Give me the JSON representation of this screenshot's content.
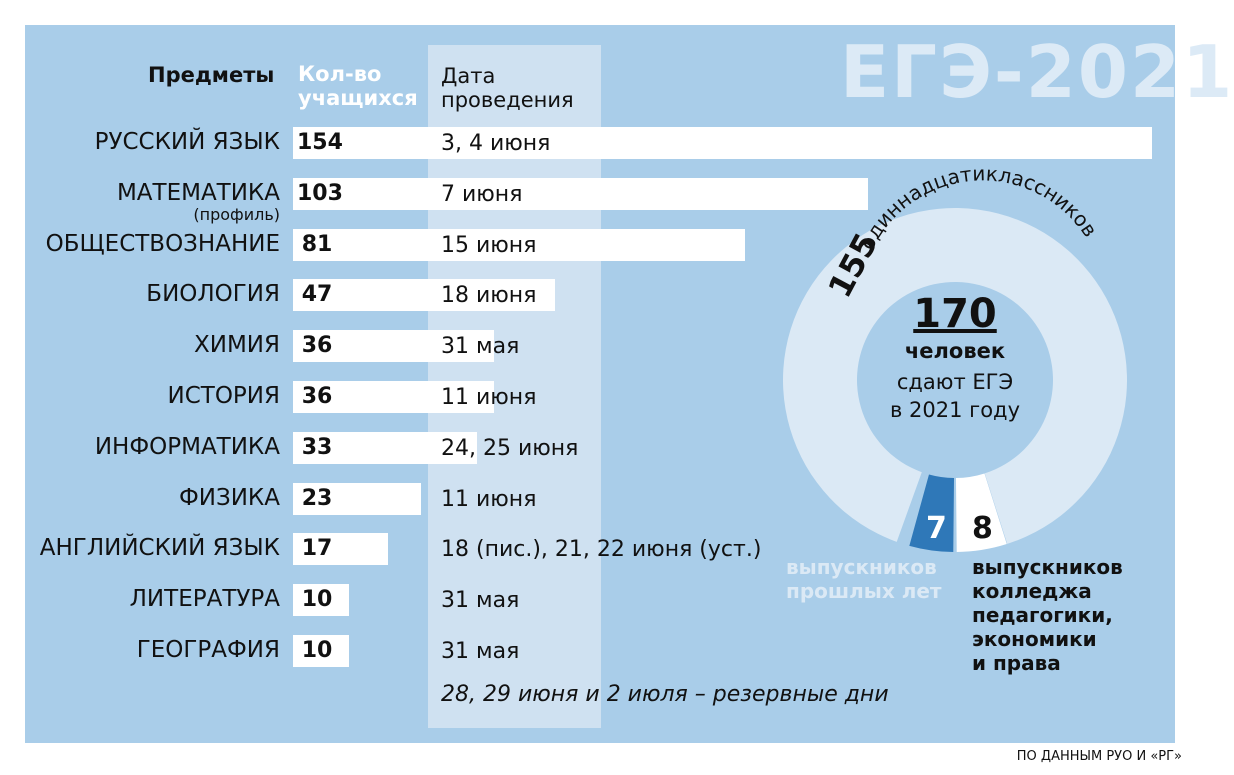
{
  "title": "ЕГЭ-2021",
  "headers": {
    "subjects": "Предметы",
    "count_line1": "Кол-во",
    "count_line2": "учащихся",
    "date_line1": "Дата",
    "date_line2": "проведения"
  },
  "chart_data": {
    "type": "bar",
    "title": "ЕГЭ-2021",
    "categories": [
      "РУССКИЙ ЯЗЫК",
      "МАТЕМАТИКА",
      "ОБЩЕСТВОЗНАНИЕ",
      "БИОЛОГИЯ",
      "ХИМИЯ",
      "ИСТОРИЯ",
      "ИНФОРМАТИКА",
      "ФИЗИКА",
      "АНГЛИЙСКИЙ ЯЗЫК",
      "ЛИТЕРАТУРА",
      "ГЕОГРАФИЯ"
    ],
    "category_notes": [
      "",
      "(профиль)",
      "",
      "",
      "",
      "",
      "",
      "",
      "",
      "",
      ""
    ],
    "values": [
      154,
      103,
      81,
      47,
      36,
      36,
      33,
      23,
      17,
      10,
      10
    ],
    "dates": [
      "3, 4 июня",
      "7 июня",
      "15 июня",
      "18 июня",
      "31 мая",
      "11 июня",
      "24, 25 июня",
      "11 июня",
      "18 (пис.), 21, 22 июня (уст.)",
      "31 мая",
      "31 мая"
    ],
    "reserve_note": "28, 29 июня и 2 июля – резервные дни",
    "donut": {
      "total": "170",
      "total_label_bold": "человек",
      "total_label_1": "сдают ЕГЭ",
      "total_label_2": "в 2021 году",
      "segments": [
        {
          "value": 155,
          "value_text": "155",
          "label": "одиннадцатиклассников",
          "color": "#dbe9f5"
        },
        {
          "value": 7,
          "value_text": "7",
          "label_1": "выпускников",
          "label_2": "прошлых лет",
          "color": "#2f78b8"
        },
        {
          "value": 8,
          "value_text": "8",
          "label_1": "выпускников",
          "label_2": "колледжа",
          "label_3": "педагогики,",
          "label_4": "экономики",
          "label_5": "и права",
          "color": "#ffffff"
        }
      ]
    }
  },
  "source": "ПО ДАННЫМ РУО И «РГ»"
}
